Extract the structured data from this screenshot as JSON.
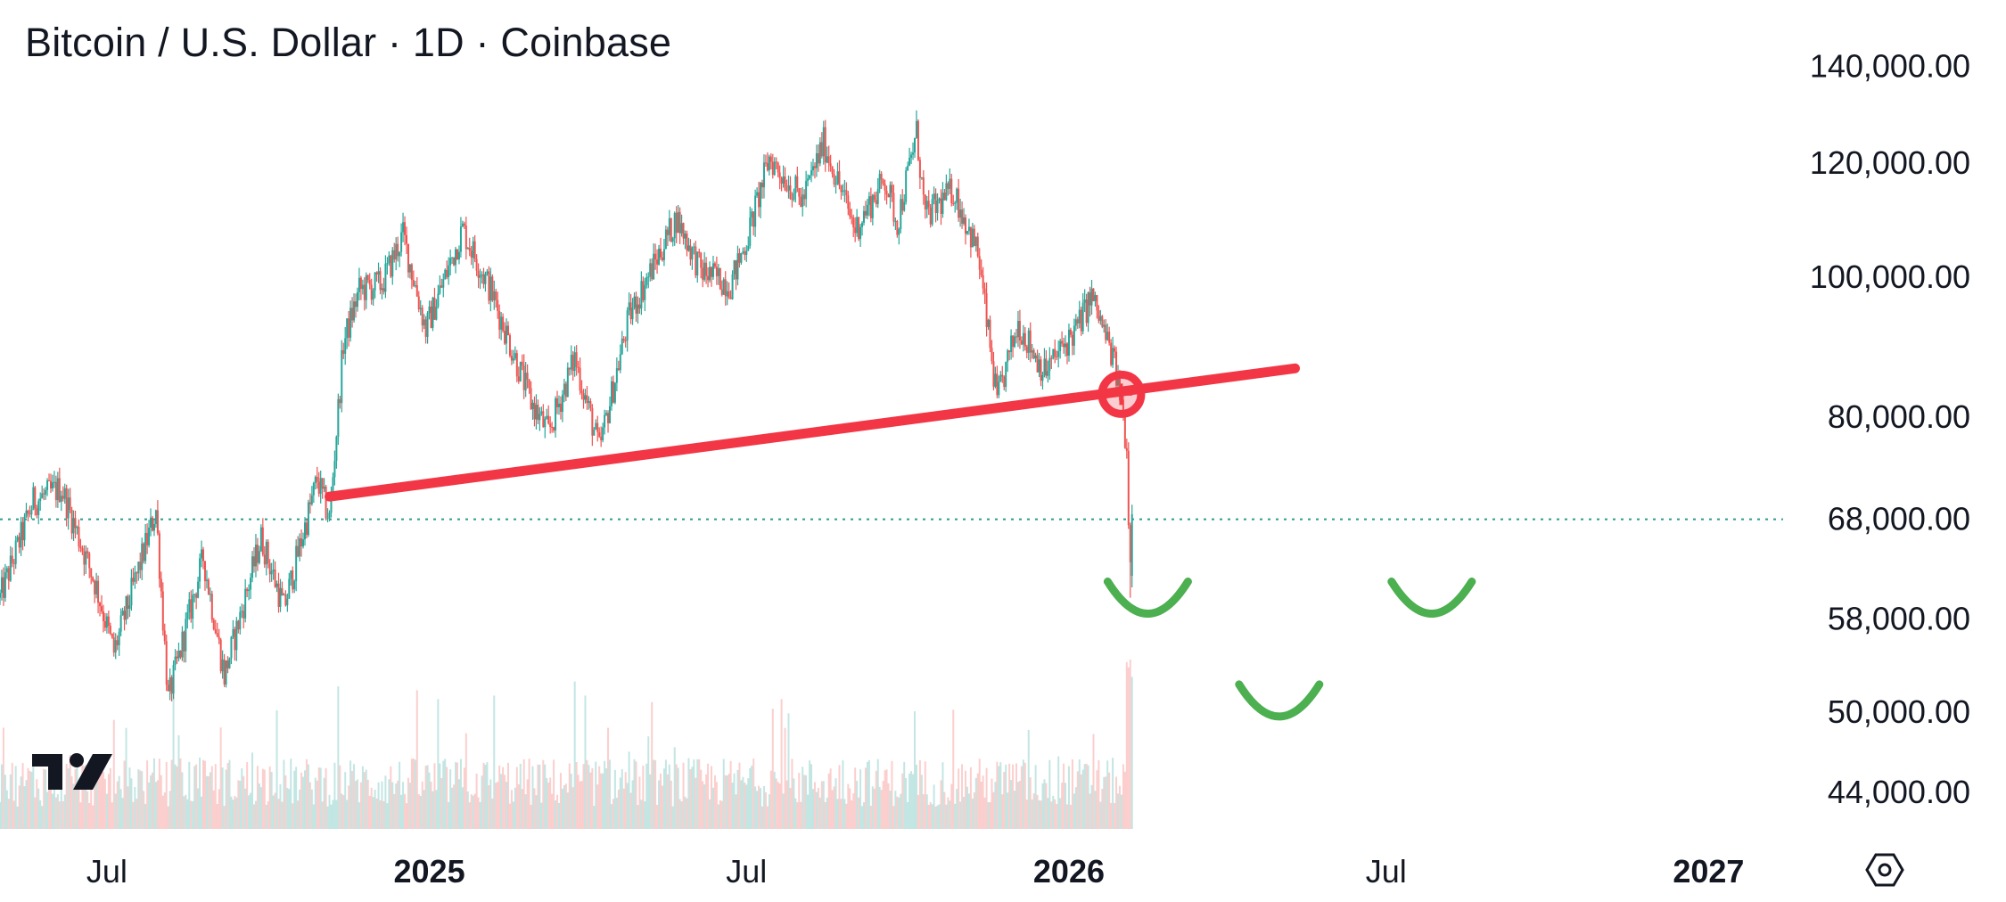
{
  "header": {
    "title": "Bitcoin / U.S. Dollar · 1D · Coinbase"
  },
  "colors": {
    "up": "#26a69a",
    "down": "#ef5350",
    "trendline": "#f23645",
    "projection": "#4caf50",
    "price_line": "#2a9d8f",
    "text": "#131722"
  },
  "icons": {
    "logo": "tradingview-logo",
    "settings": "gear-hexagon-icon"
  },
  "chart_data": {
    "type": "candlestick",
    "symbol": "Bitcoin / U.S. Dollar",
    "interval": "1D",
    "exchange": "Coinbase",
    "y_scale": "log",
    "ylim": [
      41500,
      146000
    ],
    "xlim": [
      "2024-05-01",
      "2027-02-10"
    ],
    "y_ticks": [
      {
        "value": 140000,
        "label": "140,000.00"
      },
      {
        "value": 120000,
        "label": "120,000.00"
      },
      {
        "value": 100000,
        "label": "100,000.00"
      },
      {
        "value": 80000,
        "label": "80,000.00"
      },
      {
        "value": 68000,
        "label": "68,000.00"
      },
      {
        "value": 58000,
        "label": "58,000.00"
      },
      {
        "value": 50000,
        "label": "50,000.00"
      },
      {
        "value": 44000,
        "label": "44,000.00"
      }
    ],
    "x_ticks": [
      {
        "date": "2024-07-01",
        "label": "Jul",
        "bold": false
      },
      {
        "date": "2025-01-01",
        "label": "2025",
        "bold": true
      },
      {
        "date": "2025-07-01",
        "label": "Jul",
        "bold": false
      },
      {
        "date": "2026-01-01",
        "label": "2026",
        "bold": true
      },
      {
        "date": "2026-07-01",
        "label": "Jul",
        "bold": false
      },
      {
        "date": "2027-01-01",
        "label": "2027",
        "bold": true
      }
    ],
    "current_price_line": 68000,
    "price_path": [
      [
        "2024-05-01",
        60000
      ],
      [
        "2024-05-20",
        70000
      ],
      [
        "2024-06-05",
        71500
      ],
      [
        "2024-06-25",
        61000
      ],
      [
        "2024-07-05",
        55000
      ],
      [
        "2024-07-29",
        69000
      ],
      [
        "2024-08-05",
        51000
      ],
      [
        "2024-08-25",
        64000
      ],
      [
        "2024-09-06",
        53000
      ],
      [
        "2024-09-27",
        66000
      ],
      [
        "2024-10-10",
        59000
      ],
      [
        "2024-10-29",
        72500
      ],
      [
        "2024-11-05",
        68000
      ],
      [
        "2024-11-13",
        90000
      ],
      [
        "2024-11-22",
        98000
      ],
      [
        "2024-12-05",
        99000
      ],
      [
        "2024-12-17",
        107000
      ],
      [
        "2024-12-30",
        92000
      ],
      [
        "2025-01-20",
        108000
      ],
      [
        "2025-02-05",
        98000
      ],
      [
        "2025-02-28",
        82000
      ],
      [
        "2025-03-10",
        78000
      ],
      [
        "2025-03-25",
        88000
      ],
      [
        "2025-04-08",
        76000
      ],
      [
        "2025-04-25",
        94000
      ],
      [
        "2025-05-22",
        110000
      ],
      [
        "2025-06-05",
        101000
      ],
      [
        "2025-06-22",
        99000
      ],
      [
        "2025-07-01",
        106000
      ],
      [
        "2025-07-14",
        121000
      ],
      [
        "2025-08-02",
        113000
      ],
      [
        "2025-08-14",
        124000
      ],
      [
        "2025-09-01",
        108000
      ],
      [
        "2025-09-18",
        117000
      ],
      [
        "2025-09-25",
        109000
      ],
      [
        "2025-10-06",
        126000
      ],
      [
        "2025-10-11",
        110000
      ],
      [
        "2025-10-27",
        115000
      ],
      [
        "2025-11-10",
        104000
      ],
      [
        "2025-11-21",
        82000
      ],
      [
        "2025-12-03",
        93000
      ],
      [
        "2025-12-18",
        86000
      ],
      [
        "2026-01-05",
        92000
      ],
      [
        "2026-01-14",
        97000
      ],
      [
        "2026-01-26",
        88000
      ],
      [
        "2026-01-31",
        82000
      ],
      [
        "2026-02-03",
        76000
      ],
      [
        "2026-02-05",
        62000
      ],
      [
        "2026-02-06",
        70000
      ]
    ],
    "annotations": {
      "trendline": {
        "from": [
          "2024-11-05",
          70500
        ],
        "to": [
          "2026-05-10",
          86500
        ],
        "color": "#f23645"
      },
      "breakdown_marker": {
        "date": "2026-01-31",
        "value": 83000
      },
      "projection_arcs": [
        {
          "center_date": "2026-02-15",
          "value": 59500
        },
        {
          "center_date": "2026-05-01",
          "value": 50500
        },
        {
          "center_date": "2026-07-27",
          "value": 59500
        }
      ]
    }
  }
}
